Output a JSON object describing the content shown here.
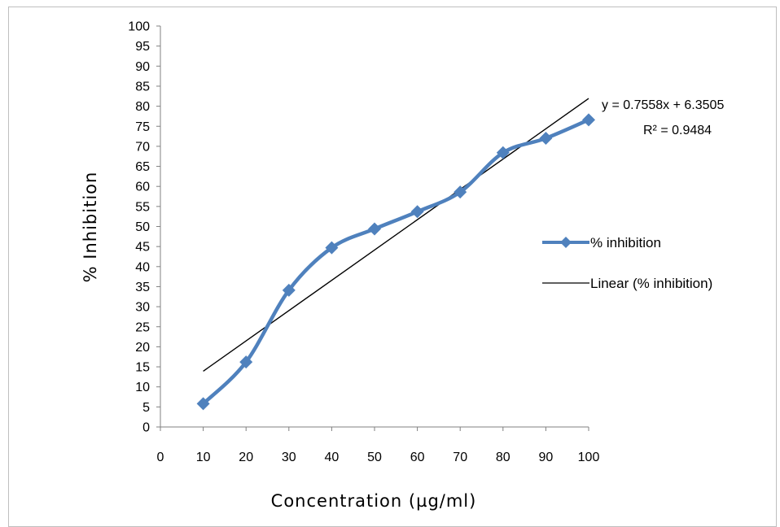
{
  "chart_data": {
    "type": "line",
    "x": [
      10,
      20,
      30,
      40,
      50,
      60,
      70,
      80,
      90,
      100
    ],
    "series": [
      {
        "name": "% inhibition",
        "values": [
          5.8,
          16.2,
          34.1,
          44.7,
          49.4,
          53.7,
          58.6,
          68.4,
          72.0,
          76.6
        ],
        "color": "#4f81bd",
        "marker": "diamond",
        "smooth": true
      },
      {
        "name": "Linear (% inhibition)",
        "type": "trendline",
        "slope": 0.7558,
        "intercept": 6.3505,
        "color": "#000000"
      }
    ],
    "xlabel": "Concentration (µg/ml)",
    "ylabel": "% Inhibition",
    "xlim": [
      0,
      100
    ],
    "ylim": [
      0,
      100
    ],
    "xticks": [
      "0",
      "10",
      "20",
      "30",
      "40",
      "50",
      "60",
      "70",
      "80",
      "90",
      "100"
    ],
    "yticks": [
      "0",
      "5",
      "10",
      "15",
      "20",
      "25",
      "30",
      "35",
      "40",
      "45",
      "50",
      "55",
      "60",
      "65",
      "70",
      "75",
      "80",
      "85",
      "90",
      "95",
      "100"
    ],
    "annotations": [
      "y = 0.7558x + 6.3505",
      "R² = 0.9484"
    ],
    "legend_position": "right",
    "grid": false
  }
}
